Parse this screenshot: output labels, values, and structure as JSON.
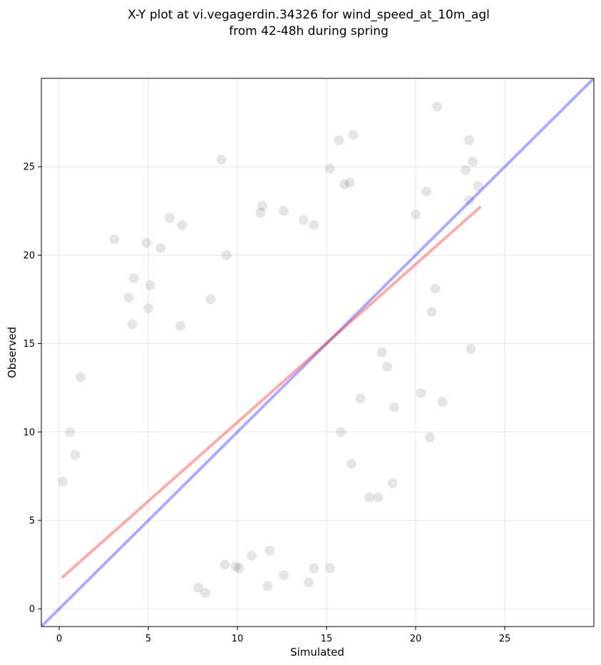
{
  "chart_data": {
    "type": "scatter",
    "title": [
      "X-Y plot at vi.vegagerdin.34326 for wind_speed_at_10m_agl",
      "from 42-48h during spring"
    ],
    "xlabel": "Simulated",
    "ylabel": "Observed",
    "xlim": [
      -1,
      30
    ],
    "ylim": [
      -1,
      30
    ],
    "xticks": [
      0,
      5,
      10,
      15,
      20,
      25
    ],
    "yticks": [
      0,
      5,
      10,
      15,
      20,
      25
    ],
    "grid": true,
    "legend": "none",
    "colors": {
      "points": "#000000",
      "identity_line": "#0000ff",
      "fit_line": "#ff0000"
    },
    "series": [
      {
        "kind": "points",
        "x": [
          9.1,
          16.5,
          15.7,
          21.2,
          23.0,
          23.2,
          22.8,
          23.5,
          16.0,
          16.3,
          20.6,
          20.0,
          21.1,
          23.0,
          20.9,
          23.1,
          18.1,
          18.8,
          21.5,
          17.9,
          18.4,
          20.3,
          20.8,
          18.7,
          17.4,
          14.3,
          15.2,
          14.0,
          15.8,
          16.4,
          16.9,
          11.7,
          12.6,
          10.1,
          9.9,
          11.8,
          10.8,
          9.3,
          8.2,
          7.8,
          5.7,
          6.2,
          6.9,
          4.9,
          5.0,
          3.1,
          3.9,
          4.1,
          1.2,
          0.2,
          0.6,
          0.9,
          15.2,
          14.3,
          13.7,
          11.4,
          11.3,
          12.6,
          5.1,
          4.2,
          6.8,
          8.5,
          9.4
        ],
        "y": [
          25.4,
          26.8,
          26.5,
          28.4,
          26.5,
          25.3,
          24.8,
          23.9,
          24.0,
          24.1,
          23.6,
          22.3,
          18.1,
          23.1,
          16.8,
          14.7,
          14.5,
          11.4,
          11.7,
          6.3,
          13.7,
          12.2,
          9.7,
          7.1,
          6.3,
          2.3,
          2.3,
          1.5,
          10.0,
          8.2,
          11.9,
          1.3,
          1.9,
          2.3,
          2.4,
          3.3,
          3.0,
          2.5,
          0.9,
          1.2,
          20.4,
          22.1,
          21.7,
          20.7,
          17.0,
          20.9,
          17.6,
          16.1,
          13.1,
          7.2,
          10.0,
          8.7,
          24.9,
          21.7,
          22.0,
          22.8,
          22.4,
          22.5,
          18.3,
          18.7,
          16.0,
          17.5,
          20.0
        ]
      },
      {
        "kind": "identity",
        "name": "",
        "x": [
          -1,
          30
        ],
        "y": [
          -1,
          30
        ]
      },
      {
        "kind": "fit",
        "name": "",
        "x": [
          0.2,
          23.6
        ],
        "y": [
          1.8,
          22.7
        ]
      }
    ]
  }
}
